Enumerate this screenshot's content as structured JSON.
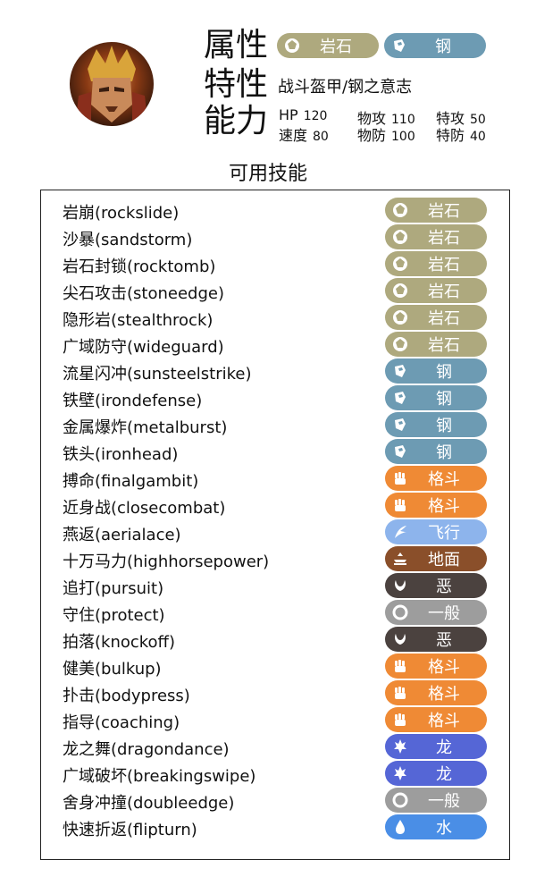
{
  "header": {
    "type_label": "属性",
    "ability_label": "特性",
    "stats_label": "能力",
    "types": [
      {
        "name": "岩石",
        "icon": "rock-icon",
        "color": "#aea97e"
      },
      {
        "name": "钢",
        "icon": "steel-icon",
        "color": "#6d9bb3"
      }
    ],
    "abilities": "战斗盔甲/钢之意志",
    "stats": [
      {
        "key": "HP",
        "value": "120"
      },
      {
        "key": "物攻",
        "value": "110"
      },
      {
        "key": "特攻",
        "value": "50"
      },
      {
        "key": "速度",
        "value": "80"
      },
      {
        "key": "物防",
        "value": "100"
      },
      {
        "key": "特防",
        "value": "40"
      }
    ]
  },
  "moves_title": "可用技能",
  "moves": [
    {
      "name": "岩崩(rockslide)",
      "type": "岩石",
      "icon": "rock-icon",
      "color": "#aea97e"
    },
    {
      "name": "沙暴(sandstorm)",
      "type": "岩石",
      "icon": "rock-icon",
      "color": "#aea97e"
    },
    {
      "name": "岩石封锁(rocktomb)",
      "type": "岩石",
      "icon": "rock-icon",
      "color": "#aea97e"
    },
    {
      "name": "尖石攻击(stoneedge)",
      "type": "岩石",
      "icon": "rock-icon",
      "color": "#aea97e"
    },
    {
      "name": "隐形岩(stealthrock)",
      "type": "岩石",
      "icon": "rock-icon",
      "color": "#aea97e"
    },
    {
      "name": "广域防守(wideguard)",
      "type": "岩石",
      "icon": "rock-icon",
      "color": "#aea97e"
    },
    {
      "name": "流星闪冲(sunsteelstrike)",
      "type": "钢",
      "icon": "steel-icon",
      "color": "#6d9bb3"
    },
    {
      "name": "铁壁(irondefense)",
      "type": "钢",
      "icon": "steel-icon",
      "color": "#6d9bb3"
    },
    {
      "name": "金属爆炸(metalburst)",
      "type": "钢",
      "icon": "steel-icon",
      "color": "#6d9bb3"
    },
    {
      "name": "铁头(ironhead)",
      "type": "钢",
      "icon": "steel-icon",
      "color": "#6d9bb3"
    },
    {
      "name": "搏命(finalgambit)",
      "type": "格斗",
      "icon": "fighting-icon",
      "color": "#ef8a35"
    },
    {
      "name": "近身战(closecombat)",
      "type": "格斗",
      "icon": "fighting-icon",
      "color": "#ef8a35"
    },
    {
      "name": "燕返(aerialace)",
      "type": "飞行",
      "icon": "flying-icon",
      "color": "#8db4ec"
    },
    {
      "name": "十万马力(highhorsepower)",
      "type": "地面",
      "icon": "ground-icon",
      "color": "#8a4f2a"
    },
    {
      "name": "追打(pursuit)",
      "type": "恶",
      "icon": "dark-icon",
      "color": "#4b423f"
    },
    {
      "name": "守住(protect)",
      "type": "一般",
      "icon": "normal-icon",
      "color": "#9d9d9d"
    },
    {
      "name": "拍落(knockoff)",
      "type": "恶",
      "icon": "dark-icon",
      "color": "#4b423f"
    },
    {
      "name": "健美(bulkup)",
      "type": "格斗",
      "icon": "fighting-icon",
      "color": "#ef8a35"
    },
    {
      "name": "扑击(bodypress)",
      "type": "格斗",
      "icon": "fighting-icon",
      "color": "#ef8a35"
    },
    {
      "name": "指导(coaching)",
      "type": "格斗",
      "icon": "fighting-icon",
      "color": "#ef8a35"
    },
    {
      "name": "龙之舞(dragondance)",
      "type": "龙",
      "icon": "dragon-icon",
      "color": "#5566d6"
    },
    {
      "name": "广域破坏(breakingswipe)",
      "type": "龙",
      "icon": "dragon-icon",
      "color": "#5566d6"
    },
    {
      "name": "舍身冲撞(doubleedge)",
      "type": "一般",
      "icon": "normal-icon",
      "color": "#9d9d9d"
    },
    {
      "name": "快速折返(flipturn)",
      "type": "水",
      "icon": "water-icon",
      "color": "#4a8ee6"
    }
  ]
}
